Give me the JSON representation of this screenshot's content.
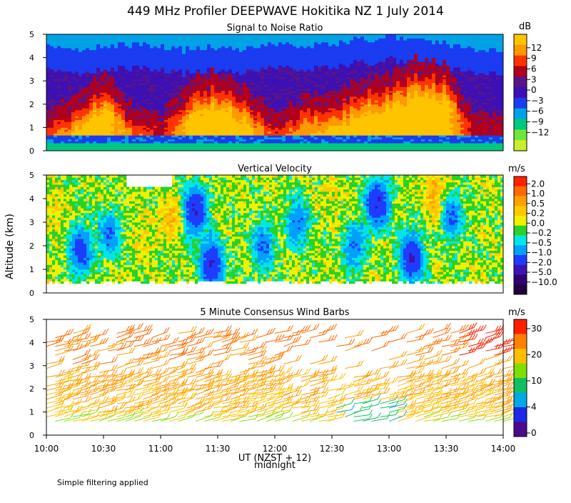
{
  "title": "449 MHz Profiler DEEPWAVE Hokitika NZ   1 July 2014",
  "ylabel": "Altitude (km)",
  "xlabel": "UT  (NZST + 12)",
  "xlabel_sub": "midnight",
  "footnote": "Simple filtering applied",
  "chart_data": [
    {
      "type": "heatmap",
      "id": "snr",
      "title": "Signal to Noise Ratio",
      "ylim": [
        0,
        5
      ],
      "yticks": [
        "0",
        "1",
        "2",
        "3",
        "4",
        "5"
      ],
      "xlim_hours": [
        10,
        14
      ],
      "colorbar_unit": "dB",
      "colorbar_labels": [
        "12",
        "9",
        "6",
        "3",
        "0",
        "−3",
        "−6",
        "−9",
        "−12"
      ],
      "colorbar_colors": [
        "#ffc400",
        "#ff9900",
        "#ff3300",
        "#b0001e",
        "#5a1488",
        "#3c10b4",
        "#1b3cf0",
        "#00a2e6",
        "#00c87e",
        "#6ee63c",
        "#c8f02a"
      ],
      "columns": [
        {
          "t": 10.0,
          "top": 4.6,
          "strong_top": 1.1,
          "strong_val": 6
        },
        {
          "t": 10.25,
          "top": 4.4,
          "strong_top": 1.9,
          "strong_val": 12
        },
        {
          "t": 10.5,
          "top": 4.5,
          "strong_top": 2.8,
          "strong_val": 12
        },
        {
          "t": 10.75,
          "top": 4.6,
          "strong_top": 1.4,
          "strong_val": 9
        },
        {
          "t": 11.0,
          "top": 4.5,
          "strong_top": 1.0,
          "strong_val": 3
        },
        {
          "t": 11.25,
          "top": 4.3,
          "strong_top": 2.4,
          "strong_val": 12
        },
        {
          "t": 11.5,
          "top": 4.5,
          "strong_top": 2.9,
          "strong_val": 12
        },
        {
          "t": 11.75,
          "top": 4.4,
          "strong_top": 2.2,
          "strong_val": 12
        },
        {
          "t": 12.0,
          "top": 4.6,
          "strong_top": 1.0,
          "strong_val": 6
        },
        {
          "t": 12.25,
          "top": 4.5,
          "strong_top": 1.8,
          "strong_val": 9
        },
        {
          "t": 12.5,
          "top": 4.6,
          "strong_top": 1.9,
          "strong_val": 12
        },
        {
          "t": 12.75,
          "top": 4.8,
          "strong_top": 2.5,
          "strong_val": 12
        },
        {
          "t": 13.0,
          "top": 4.9,
          "strong_top": 2.8,
          "strong_val": 12
        },
        {
          "t": 13.25,
          "top": 4.9,
          "strong_top": 3.4,
          "strong_val": 12
        },
        {
          "t": 13.5,
          "top": 4.6,
          "strong_top": 3.2,
          "strong_val": 12
        },
        {
          "t": 13.75,
          "top": 4.4,
          "strong_top": 1.0,
          "strong_val": 3
        },
        {
          "t": 14.0,
          "top": 4.3,
          "strong_top": 1.0,
          "strong_val": 3
        }
      ]
    },
    {
      "type": "heatmap",
      "id": "vv",
      "title": "Vertical Velocity",
      "ylim": [
        0,
        5
      ],
      "yticks": [
        "0",
        "1",
        "2",
        "3",
        "4",
        "5"
      ],
      "xlim_hours": [
        10,
        14
      ],
      "colorbar_unit": "m/s",
      "colorbar_labels": [
        "2.0",
        "1.0",
        "0.5",
        "0.2",
        "0.0",
        "−0.2",
        "−0.5",
        "−1.0",
        "−2.0",
        "−5.0",
        "−10.0"
      ],
      "colorbar_colors": [
        "#ff2000",
        "#ff6a00",
        "#ffa000",
        "#ffc800",
        "#f0f000",
        "#28d228",
        "#00e6e6",
        "#00a0ff",
        "#1e3cff",
        "#3c14b4",
        "#300070",
        "#200040"
      ],
      "blobs": [
        {
          "t": 10.3,
          "z": 1.8,
          "val": -1.5
        },
        {
          "t": 10.55,
          "z": 2.5,
          "val": -1.0
        },
        {
          "t": 11.3,
          "z": 3.5,
          "val": -2.0
        },
        {
          "t": 11.45,
          "z": 1.2,
          "val": -2.0
        },
        {
          "t": 11.9,
          "z": 2.0,
          "val": -1.0
        },
        {
          "t": 12.2,
          "z": 3.0,
          "val": -1.0
        },
        {
          "t": 12.7,
          "z": 2.0,
          "val": -1.0
        },
        {
          "t": 12.9,
          "z": 3.8,
          "val": -2.0
        },
        {
          "t": 13.2,
          "z": 1.5,
          "val": -2.0
        },
        {
          "t": 13.55,
          "z": 3.2,
          "val": -1.0
        },
        {
          "t": 10.1,
          "z": 3.5,
          "val": 0.2
        },
        {
          "t": 10.85,
          "z": 2.2,
          "val": 0.2
        },
        {
          "t": 11.1,
          "z": 3.2,
          "val": 0.5
        },
        {
          "t": 12.5,
          "z": 4.5,
          "val": 0.2
        },
        {
          "t": 13.4,
          "z": 4.2,
          "val": 0.5
        }
      ]
    },
    {
      "type": "wind-barbs",
      "id": "wind",
      "title": "5 Minute Consensus Wind Barbs",
      "ylim": [
        0,
        5
      ],
      "yticks": [
        "0",
        "1",
        "2",
        "3",
        "4",
        "5"
      ],
      "xlim_hours": [
        10,
        14
      ],
      "x_tick_labels": [
        "10:00",
        "10:30",
        "11:00",
        "11:30",
        "12:00",
        "12:30",
        "13:00",
        "13:30",
        "14:00"
      ],
      "colorbar_unit": "m/s",
      "colorbar_labels": [
        "30",
        "20",
        "10",
        "4",
        "0"
      ],
      "colorbar_colors": [
        "#ff1e00",
        "#ff8000",
        "#ffbf00",
        "#7fe000",
        "#10c060",
        "#00a8e6",
        "#1e28e6",
        "#4a0a8c"
      ],
      "speed_profile": [
        {
          "z": 0.5,
          "speed": 10
        },
        {
          "z": 1.0,
          "speed": 16
        },
        {
          "z": 2.0,
          "speed": 18
        },
        {
          "z": 3.0,
          "speed": 20
        },
        {
          "z": 4.0,
          "speed": 24
        }
      ]
    }
  ]
}
